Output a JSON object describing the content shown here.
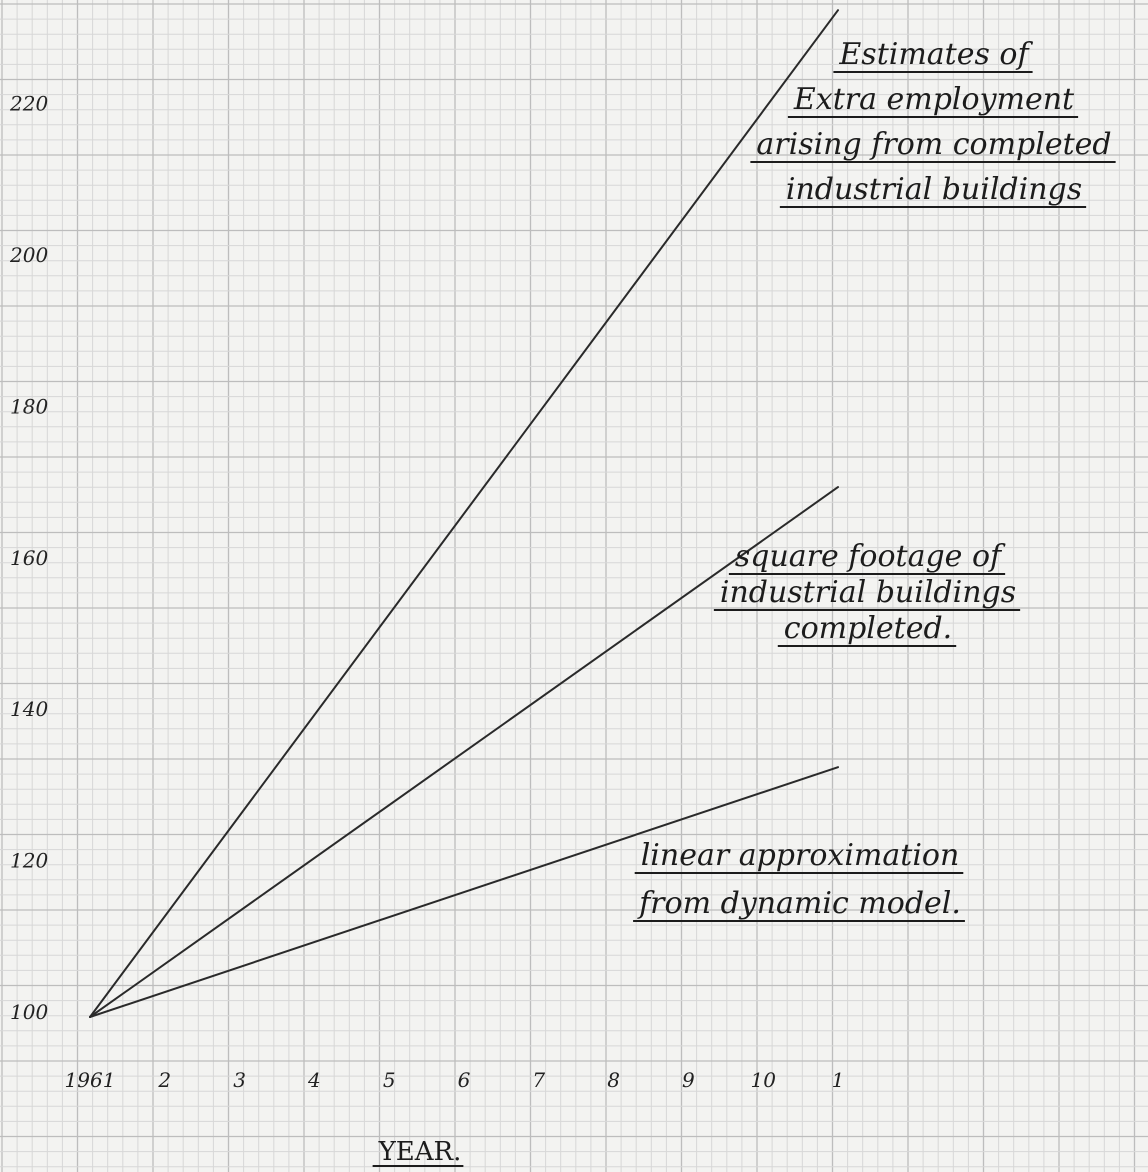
{
  "chart_data": {
    "type": "line",
    "title": "",
    "xlabel": "YEAR.",
    "ylabel": "",
    "x": [
      1961,
      1971
    ],
    "x_tick_labels": [
      "1961",
      "2",
      "3",
      "4",
      "5",
      "6",
      "7",
      "8",
      "9",
      "10",
      "1"
    ],
    "y_tick_labels": [
      "100",
      "120",
      "140",
      "160",
      "180",
      "200",
      "220"
    ],
    "ylim": [
      100,
      232
    ],
    "xlim": [
      1961,
      1971
    ],
    "grid": true,
    "series": [
      {
        "name": "Estimates of Extra employment arising from completed industrial buildings",
        "values": [
          100,
          233
        ]
      },
      {
        "name": "square footage of industrial buildings completed",
        "values": [
          100,
          170
        ]
      },
      {
        "name": "linear approximation from dynamic model.",
        "values": [
          100,
          133
        ]
      }
    ],
    "annotations": [
      {
        "lines": [
          "Estimates of",
          "Extra employment",
          "arising from completed",
          "industrial buildings"
        ]
      },
      {
        "lines": [
          "square footage of",
          "industrial buildings",
          "completed."
        ]
      },
      {
        "lines": [
          "linear approximation",
          "from dynamic model."
        ]
      }
    ]
  }
}
